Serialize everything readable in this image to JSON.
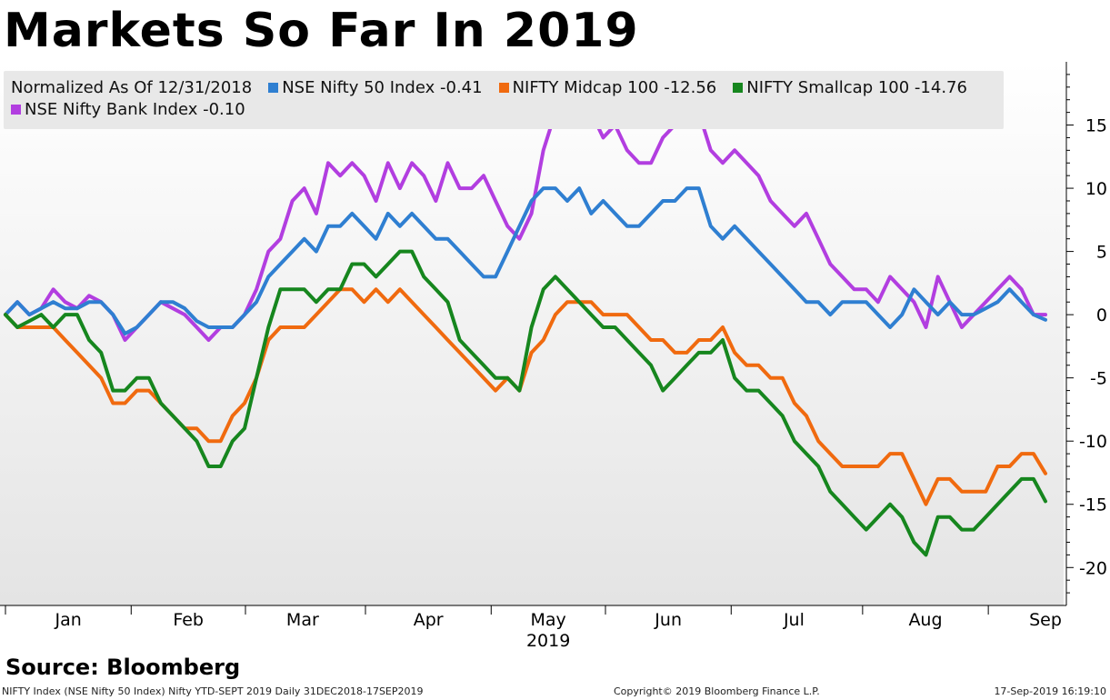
{
  "title": "Markets So Far In 2019",
  "legend": {
    "prefix": "Normalized As Of 12/31/2018",
    "entries": [
      {
        "label": "NSE Nifty 50 Index -0.41",
        "color": "#2f7fd1"
      },
      {
        "label": "NIFTY Midcap 100 -12.56",
        "color": "#f06a0f"
      },
      {
        "label": "NIFTY Smallcap 100 -14.76",
        "color": "#16861e"
      },
      {
        "label": "NSE Nifty Bank Index -0.10",
        "color": "#b23ee0"
      }
    ]
  },
  "source": "Source: Bloomberg",
  "footer": {
    "left": "NIFTY Index (NSE Nifty 50 Index) Nifty YTD-SEPT 2019  Daily 31DEC2018-17SEP2019",
    "center": "Copyright© 2019 Bloomberg Finance L.P.",
    "right": "17-Sep-2019 16:19:10"
  },
  "chart_data": {
    "type": "line",
    "x_tick_labels": [
      "Jan",
      "Feb",
      "Mar",
      "Apr",
      "May",
      "Jun",
      "Jul",
      "Aug",
      "Sep"
    ],
    "x_year_label": "2019",
    "y_ticks": [
      15,
      10,
      5,
      0,
      -5,
      -10,
      -15,
      -20
    ],
    "ylim": [
      -23,
      20
    ],
    "y_axis_position": "right",
    "background": "white-to-gray gradient",
    "series": [
      {
        "name": "NSE Nifty Bank Index",
        "color": "#b23ee0",
        "x": [
          0,
          3,
          6,
          9,
          12,
          15,
          18,
          21,
          24,
          27,
          30,
          33,
          36,
          39,
          42,
          45,
          48,
          51,
          54,
          57,
          60,
          63,
          66,
          69,
          72,
          75,
          78,
          81,
          84,
          87,
          90,
          93,
          96,
          99,
          102,
          105,
          108,
          111,
          114,
          117,
          120,
          123,
          126,
          129,
          132,
          135,
          138,
          141,
          144,
          147,
          150,
          153,
          156,
          159,
          162,
          165,
          168,
          171,
          174,
          177,
          180,
          183,
          186,
          189,
          192,
          195,
          198,
          201,
          204,
          207,
          210,
          213,
          216,
          219,
          222,
          225,
          228,
          231,
          234,
          237,
          240,
          243,
          246,
          249,
          252,
          255,
          258,
          261
        ],
        "values": [
          0,
          1,
          0,
          0.5,
          2,
          1,
          0.5,
          1.5,
          1,
          0,
          -2,
          -1,
          0,
          1,
          0.5,
          0,
          -1,
          -2,
          -1,
          -1,
          0,
          2,
          5,
          6,
          9,
          10,
          8,
          12,
          11,
          12,
          11,
          9,
          12,
          10,
          12,
          11,
          9,
          12,
          10,
          10,
          11,
          9,
          7,
          6,
          8,
          13,
          16,
          16,
          15,
          16,
          14,
          15,
          13,
          12,
          12,
          14,
          15,
          16,
          16,
          13,
          12,
          13,
          12,
          11,
          9,
          8,
          7,
          8,
          6,
          4,
          3,
          2,
          2,
          1,
          3,
          2,
          1,
          -1,
          3,
          1,
          -1,
          0,
          1,
          2,
          3,
          2,
          0,
          0
        ],
        "end_value": -0.1
      },
      {
        "name": "NSE Nifty 50 Index",
        "color": "#2f7fd1",
        "x": [
          0,
          3,
          6,
          9,
          12,
          15,
          18,
          21,
          24,
          27,
          30,
          33,
          36,
          39,
          42,
          45,
          48,
          51,
          54,
          57,
          60,
          63,
          66,
          69,
          72,
          75,
          78,
          81,
          84,
          87,
          90,
          93,
          96,
          99,
          102,
          105,
          108,
          111,
          114,
          117,
          120,
          123,
          126,
          129,
          132,
          135,
          138,
          141,
          144,
          147,
          150,
          153,
          156,
          159,
          162,
          165,
          168,
          171,
          174,
          177,
          180,
          183,
          186,
          189,
          192,
          195,
          198,
          201,
          204,
          207,
          210,
          213,
          216,
          219,
          222,
          225,
          228,
          231,
          234,
          237,
          240,
          243,
          246,
          249,
          252,
          255,
          258,
          261
        ],
        "values": [
          0,
          1,
          0,
          0.5,
          1,
          0.5,
          0.5,
          1,
          1,
          0,
          -1.5,
          -1,
          0,
          1,
          1,
          0.5,
          -0.5,
          -1,
          -1,
          -1,
          0,
          1,
          3,
          4,
          5,
          6,
          5,
          7,
          7,
          8,
          7,
          6,
          8,
          7,
          8,
          7,
          6,
          6,
          5,
          4,
          3,
          3,
          5,
          7,
          9,
          10,
          10,
          9,
          10,
          8,
          9,
          8,
          7,
          7,
          8,
          9,
          9,
          10,
          10,
          7,
          6,
          7,
          6,
          5,
          4,
          3,
          2,
          1,
          1,
          0,
          1,
          1,
          1,
          0,
          -1,
          0,
          2,
          1,
          0,
          1,
          0,
          0,
          0.5,
          1,
          2,
          1,
          0,
          -0.41
        ],
        "end_value": -0.41
      },
      {
        "name": "NIFTY Midcap 100",
        "color": "#f06a0f",
        "x": [
          0,
          3,
          6,
          9,
          12,
          15,
          18,
          21,
          24,
          27,
          30,
          33,
          36,
          39,
          42,
          45,
          48,
          51,
          54,
          57,
          60,
          63,
          66,
          69,
          72,
          75,
          78,
          81,
          84,
          87,
          90,
          93,
          96,
          99,
          102,
          105,
          108,
          111,
          114,
          117,
          120,
          123,
          126,
          129,
          132,
          135,
          138,
          141,
          144,
          147,
          150,
          153,
          156,
          159,
          162,
          165,
          168,
          171,
          174,
          177,
          180,
          183,
          186,
          189,
          192,
          195,
          198,
          201,
          204,
          207,
          210,
          213,
          216,
          219,
          222,
          225,
          228,
          231,
          234,
          237,
          240,
          243,
          246,
          249,
          252,
          255,
          258,
          261
        ],
        "values": [
          0,
          -1,
          -1,
          -1,
          -1,
          -2,
          -3,
          -4,
          -5,
          -7,
          -7,
          -6,
          -6,
          -7,
          -8,
          -9,
          -9,
          -10,
          -10,
          -8,
          -7,
          -5,
          -2,
          -1,
          -1,
          -1,
          0,
          1,
          2,
          2,
          1,
          2,
          1,
          2,
          1,
          0,
          -1,
          -2,
          -3,
          -4,
          -5,
          -6,
          -5,
          -6,
          -3,
          -2,
          0,
          1,
          1,
          1,
          0,
          0,
          0,
          -1,
          -2,
          -2,
          -3,
          -3,
          -2,
          -2,
          -1,
          -3,
          -4,
          -4,
          -5,
          -5,
          -7,
          -8,
          -10,
          -11,
          -12,
          -12,
          -12,
          -12,
          -11,
          -11,
          -13,
          -15,
          -13,
          -13,
          -14,
          -14,
          -14,
          -12,
          -12,
          -11,
          -11,
          -12.56
        ],
        "end_value": -12.56
      },
      {
        "name": "NIFTY Smallcap 100",
        "color": "#16861e",
        "x": [
          0,
          3,
          6,
          9,
          12,
          15,
          18,
          21,
          24,
          27,
          30,
          33,
          36,
          39,
          42,
          45,
          48,
          51,
          54,
          57,
          60,
          63,
          66,
          69,
          72,
          75,
          78,
          81,
          84,
          87,
          90,
          93,
          96,
          99,
          102,
          105,
          108,
          111,
          114,
          117,
          120,
          123,
          126,
          129,
          132,
          135,
          138,
          141,
          144,
          147,
          150,
          153,
          156,
          159,
          162,
          165,
          168,
          171,
          174,
          177,
          180,
          183,
          186,
          189,
          192,
          195,
          198,
          201,
          204,
          207,
          210,
          213,
          216,
          219,
          222,
          225,
          228,
          231,
          234,
          237,
          240,
          243,
          246,
          249,
          252,
          255,
          258,
          261
        ],
        "values": [
          0,
          -1,
          -0.5,
          0,
          -1,
          0,
          0,
          -2,
          -3,
          -6,
          -6,
          -5,
          -5,
          -7,
          -8,
          -9,
          -10,
          -12,
          -12,
          -10,
          -9,
          -5,
          -1,
          2,
          2,
          2,
          1,
          2,
          2,
          4,
          4,
          3,
          4,
          5,
          5,
          3,
          2,
          1,
          -2,
          -3,
          -4,
          -5,
          -5,
          -6,
          -1,
          2,
          3,
          2,
          1,
          0,
          -1,
          -1,
          -2,
          -3,
          -4,
          -6,
          -5,
          -4,
          -3,
          -3,
          -2,
          -5,
          -6,
          -6,
          -7,
          -8,
          -10,
          -11,
          -12,
          -14,
          -15,
          -16,
          -17,
          -16,
          -15,
          -16,
          -18,
          -19,
          -16,
          -16,
          -17,
          -17,
          -16,
          -15,
          -14,
          -13,
          -13,
          -14.76
        ],
        "end_value": -14.76
      }
    ]
  }
}
